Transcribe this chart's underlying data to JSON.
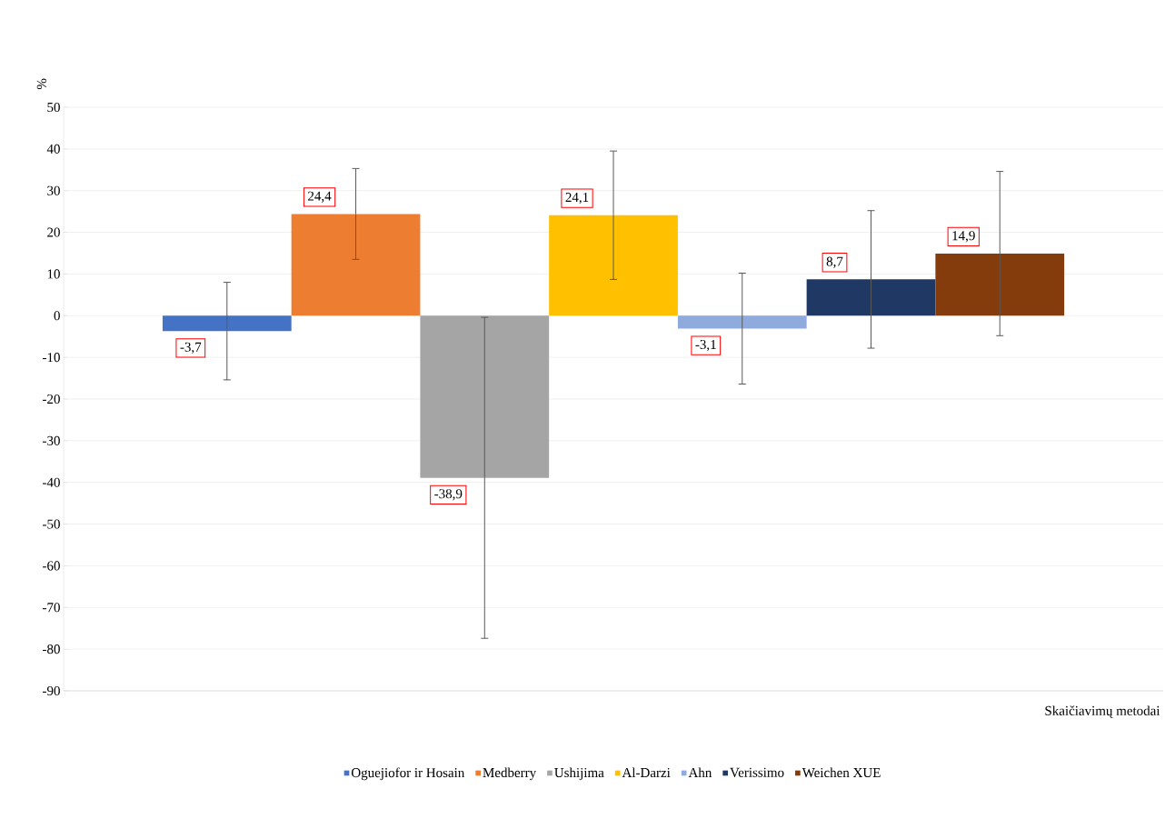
{
  "chart_data": {
    "type": "bar",
    "ylabel": "%",
    "xlabel": "Skaičiavimų metodai",
    "categories": [
      null
    ],
    "series": [
      {
        "name": "Oguejiofor ir Hosain",
        "color": "#4472c4",
        "values": [
          -3.7
        ],
        "errors": [
          11.7
        ],
        "value_labels": [
          "-3,7"
        ]
      },
      {
        "name": "Medberry",
        "color": "#ed7d31",
        "values": [
          24.4
        ],
        "errors": [
          10.9
        ],
        "value_labels": [
          "24,4"
        ]
      },
      {
        "name": "Ushijima",
        "color": "#a5a5a5",
        "values": [
          -38.9
        ],
        "errors": [
          38.5
        ],
        "value_labels": [
          "-38,9"
        ]
      },
      {
        "name": "Al-Darzi",
        "color": "#ffc000",
        "values": [
          24.1
        ],
        "errors": [
          15.4
        ],
        "value_labels": [
          "24,1"
        ]
      },
      {
        "name": "Ahn",
        "color": "#8faadc",
        "values": [
          -3.1
        ],
        "errors": [
          13.3
        ],
        "value_labels": [
          "-3,1"
        ]
      },
      {
        "name": "Verissimo",
        "color": "#203864",
        "values": [
          8.7
        ],
        "errors": [
          16.5
        ],
        "value_labels": [
          "8,7"
        ]
      },
      {
        "name": "Weichen XUE",
        "color": "#843c0c",
        "values": [
          14.9
        ],
        "errors": [
          19.7
        ],
        "value_labels": [
          "14,9"
        ]
      }
    ],
    "ylim": [
      -90,
      50
    ],
    "yticks": [
      -90,
      -80,
      -70,
      -60,
      -50,
      -40,
      -30,
      -20,
      -10,
      0,
      10,
      20,
      30,
      40,
      50
    ],
    "grid": "y",
    "legend": "bottom"
  }
}
